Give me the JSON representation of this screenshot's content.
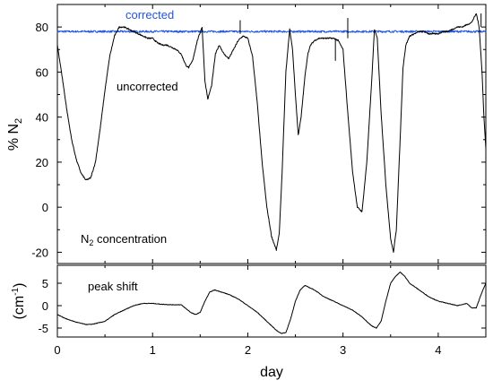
{
  "chart_data": [
    {
      "type": "line",
      "panel": "top",
      "ylabel_main": "% N",
      "ylabel_sub": "2",
      "ylim": [
        -25,
        90
      ],
      "yticks": [
        -20,
        0,
        20,
        40,
        60,
        80
      ],
      "xlim": [
        0,
        4.5
      ],
      "annotations": {
        "corrected": "corrected",
        "uncorrected": "uncorrected",
        "concentration_main": "N",
        "concentration_sub": "2",
        "concentration_rest": " concentration"
      },
      "series": [
        {
          "name": "corrected",
          "color": "#2255dd",
          "x": [
            0,
            0.6,
            1,
            1.5,
            2,
            2.5,
            3,
            3.5,
            4,
            4.5
          ],
          "y": [
            78,
            78,
            78,
            78,
            78,
            78,
            78,
            78,
            78,
            78
          ]
        },
        {
          "name": "uncorrected",
          "color": "#000000",
          "x": [
            0,
            0.05,
            0.1,
            0.15,
            0.2,
            0.25,
            0.3,
            0.35,
            0.4,
            0.45,
            0.5,
            0.55,
            0.6,
            0.65,
            0.7,
            0.75,
            0.8,
            0.85,
            0.9,
            0.95,
            1.0,
            1.05,
            1.1,
            1.15,
            1.2,
            1.25,
            1.3,
            1.35,
            1.38,
            1.42,
            1.47,
            1.52,
            1.55,
            1.58,
            1.62,
            1.66,
            1.7,
            1.75,
            1.8,
            1.85,
            1.9,
            1.95,
            2.0,
            2.05,
            2.1,
            2.15,
            2.2,
            2.25,
            2.3,
            2.33,
            2.36,
            2.4,
            2.44,
            2.47,
            2.5,
            2.53,
            2.56,
            2.6,
            2.63,
            2.66,
            2.7,
            2.75,
            2.8,
            2.85,
            2.9,
            2.95,
            3.0,
            3.05,
            3.1,
            3.15,
            3.2,
            3.25,
            3.3,
            3.33,
            3.36,
            3.4,
            3.45,
            3.5,
            3.53,
            3.56,
            3.6,
            3.63,
            3.66,
            3.7,
            3.75,
            3.8,
            3.85,
            3.9,
            3.95,
            4.0,
            4.05,
            4.1,
            4.15,
            4.2,
            4.25,
            4.3,
            4.35,
            4.4,
            4.43,
            4.46,
            4.48,
            4.5
          ],
          "y": [
            72,
            58,
            43,
            30,
            21,
            15,
            12,
            13,
            20,
            35,
            52,
            67,
            76,
            80,
            80,
            79,
            78,
            77,
            76,
            75,
            75,
            73,
            72,
            72,
            71,
            70,
            68,
            63,
            62,
            65,
            74,
            80,
            56,
            48,
            54,
            68,
            72,
            68,
            66,
            70,
            74,
            76,
            75,
            67,
            46,
            20,
            0,
            -13,
            -19,
            -12,
            15,
            60,
            79,
            70,
            50,
            32,
            40,
            58,
            68,
            72,
            74,
            75,
            75,
            75,
            75,
            74,
            70,
            42,
            16,
            0,
            -2,
            20,
            55,
            79,
            75,
            42,
            10,
            -14,
            -20,
            -10,
            30,
            62,
            72,
            76,
            77,
            78,
            78,
            77,
            77,
            77,
            78,
            78,
            79,
            80,
            80,
            81,
            82,
            86,
            80,
            60,
            40,
            26
          ]
        }
      ]
    },
    {
      "type": "line",
      "panel": "bottom",
      "ylabel_main": "(cm",
      "ylabel_sup": "-1",
      "ylabel_end": ")",
      "ylim": [
        -7,
        9
      ],
      "yticks": [
        -5,
        0,
        5
      ],
      "xlim": [
        0,
        4.5
      ],
      "xticks": [
        0,
        1,
        2,
        3,
        4
      ],
      "xlabel": "day",
      "annotations": {
        "peak_shift": "peak shift"
      },
      "series": [
        {
          "name": "peak shift",
          "color": "#000000",
          "x": [
            0,
            0.1,
            0.2,
            0.3,
            0.35,
            0.4,
            0.5,
            0.6,
            0.7,
            0.8,
            0.9,
            1.0,
            1.1,
            1.2,
            1.3,
            1.4,
            1.45,
            1.5,
            1.55,
            1.6,
            1.65,
            1.7,
            1.8,
            1.9,
            2.0,
            2.1,
            2.2,
            2.3,
            2.35,
            2.4,
            2.45,
            2.5,
            2.55,
            2.6,
            2.7,
            2.8,
            2.9,
            3.0,
            3.1,
            3.2,
            3.3,
            3.35,
            3.4,
            3.45,
            3.5,
            3.55,
            3.6,
            3.65,
            3.7,
            3.8,
            3.9,
            4.0,
            4.1,
            4.2,
            4.3,
            4.35,
            4.4,
            4.45,
            4.5
          ],
          "y": [
            -2,
            -3,
            -3.7,
            -4.2,
            -4.2,
            -4,
            -3.5,
            -2,
            -1,
            0,
            0.5,
            0.5,
            0.3,
            0.2,
            0.2,
            -1.5,
            -2,
            -1.5,
            1,
            3,
            3.5,
            3.2,
            2.5,
            1.5,
            0,
            -1.5,
            -3.5,
            -5.5,
            -6.2,
            -6,
            -3,
            1,
            3.5,
            4.5,
            3.5,
            2,
            1,
            0,
            -1,
            -2.5,
            -4.5,
            -5,
            -3.5,
            1,
            5,
            6.5,
            7.5,
            6.5,
            5,
            3.5,
            2,
            1,
            0.5,
            0,
            0.5,
            -0.5,
            -0.5,
            2.5,
            5
          ]
        }
      ]
    }
  ]
}
